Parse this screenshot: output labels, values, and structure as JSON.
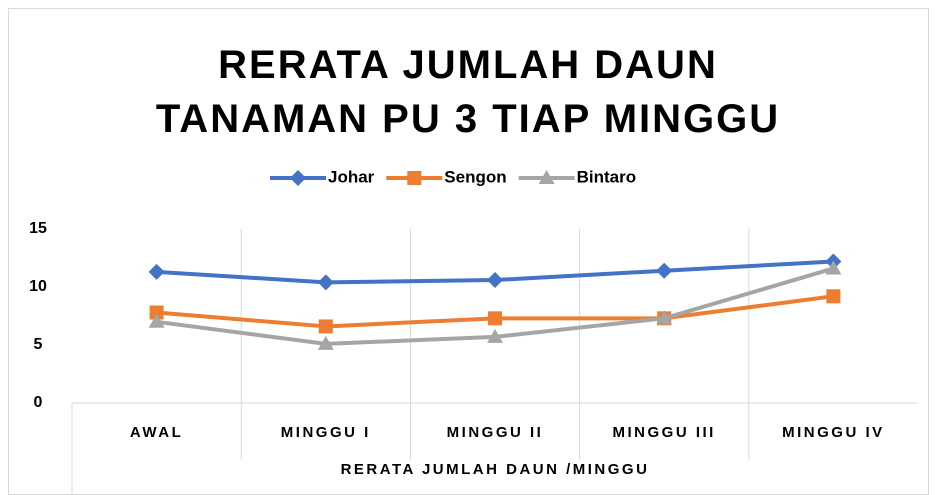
{
  "chart_data": {
    "type": "line",
    "title": "RERATA JUMLAH DAUN TANAMAN PU 3 TIAP MINGGU",
    "x_label": "RERATA JUMLAH DAUN /MINGGU",
    "categories": [
      "AWAL",
      "MINGGU I",
      "MINGGU II",
      "MINGGU III",
      "MINGGU IV"
    ],
    "series": [
      {
        "name": "Johar",
        "color": "#4472c4",
        "marker": "diamond",
        "values": [
          11.3,
          10.4,
          10.6,
          11.4,
          12.2
        ]
      },
      {
        "name": "Sengon",
        "color": "#ed7d31",
        "marker": "square",
        "values": [
          7.8,
          6.6,
          7.3,
          7.3,
          9.2
        ]
      },
      {
        "name": "Bintaro",
        "color": "#a5a5a5",
        "marker": "triangle",
        "values": [
          7.0,
          5.1,
          5.7,
          7.3,
          11.6
        ]
      }
    ],
    "ylim": [
      0,
      15
    ],
    "yticks": [
      0,
      5,
      10,
      15
    ],
    "legend": "top"
  }
}
